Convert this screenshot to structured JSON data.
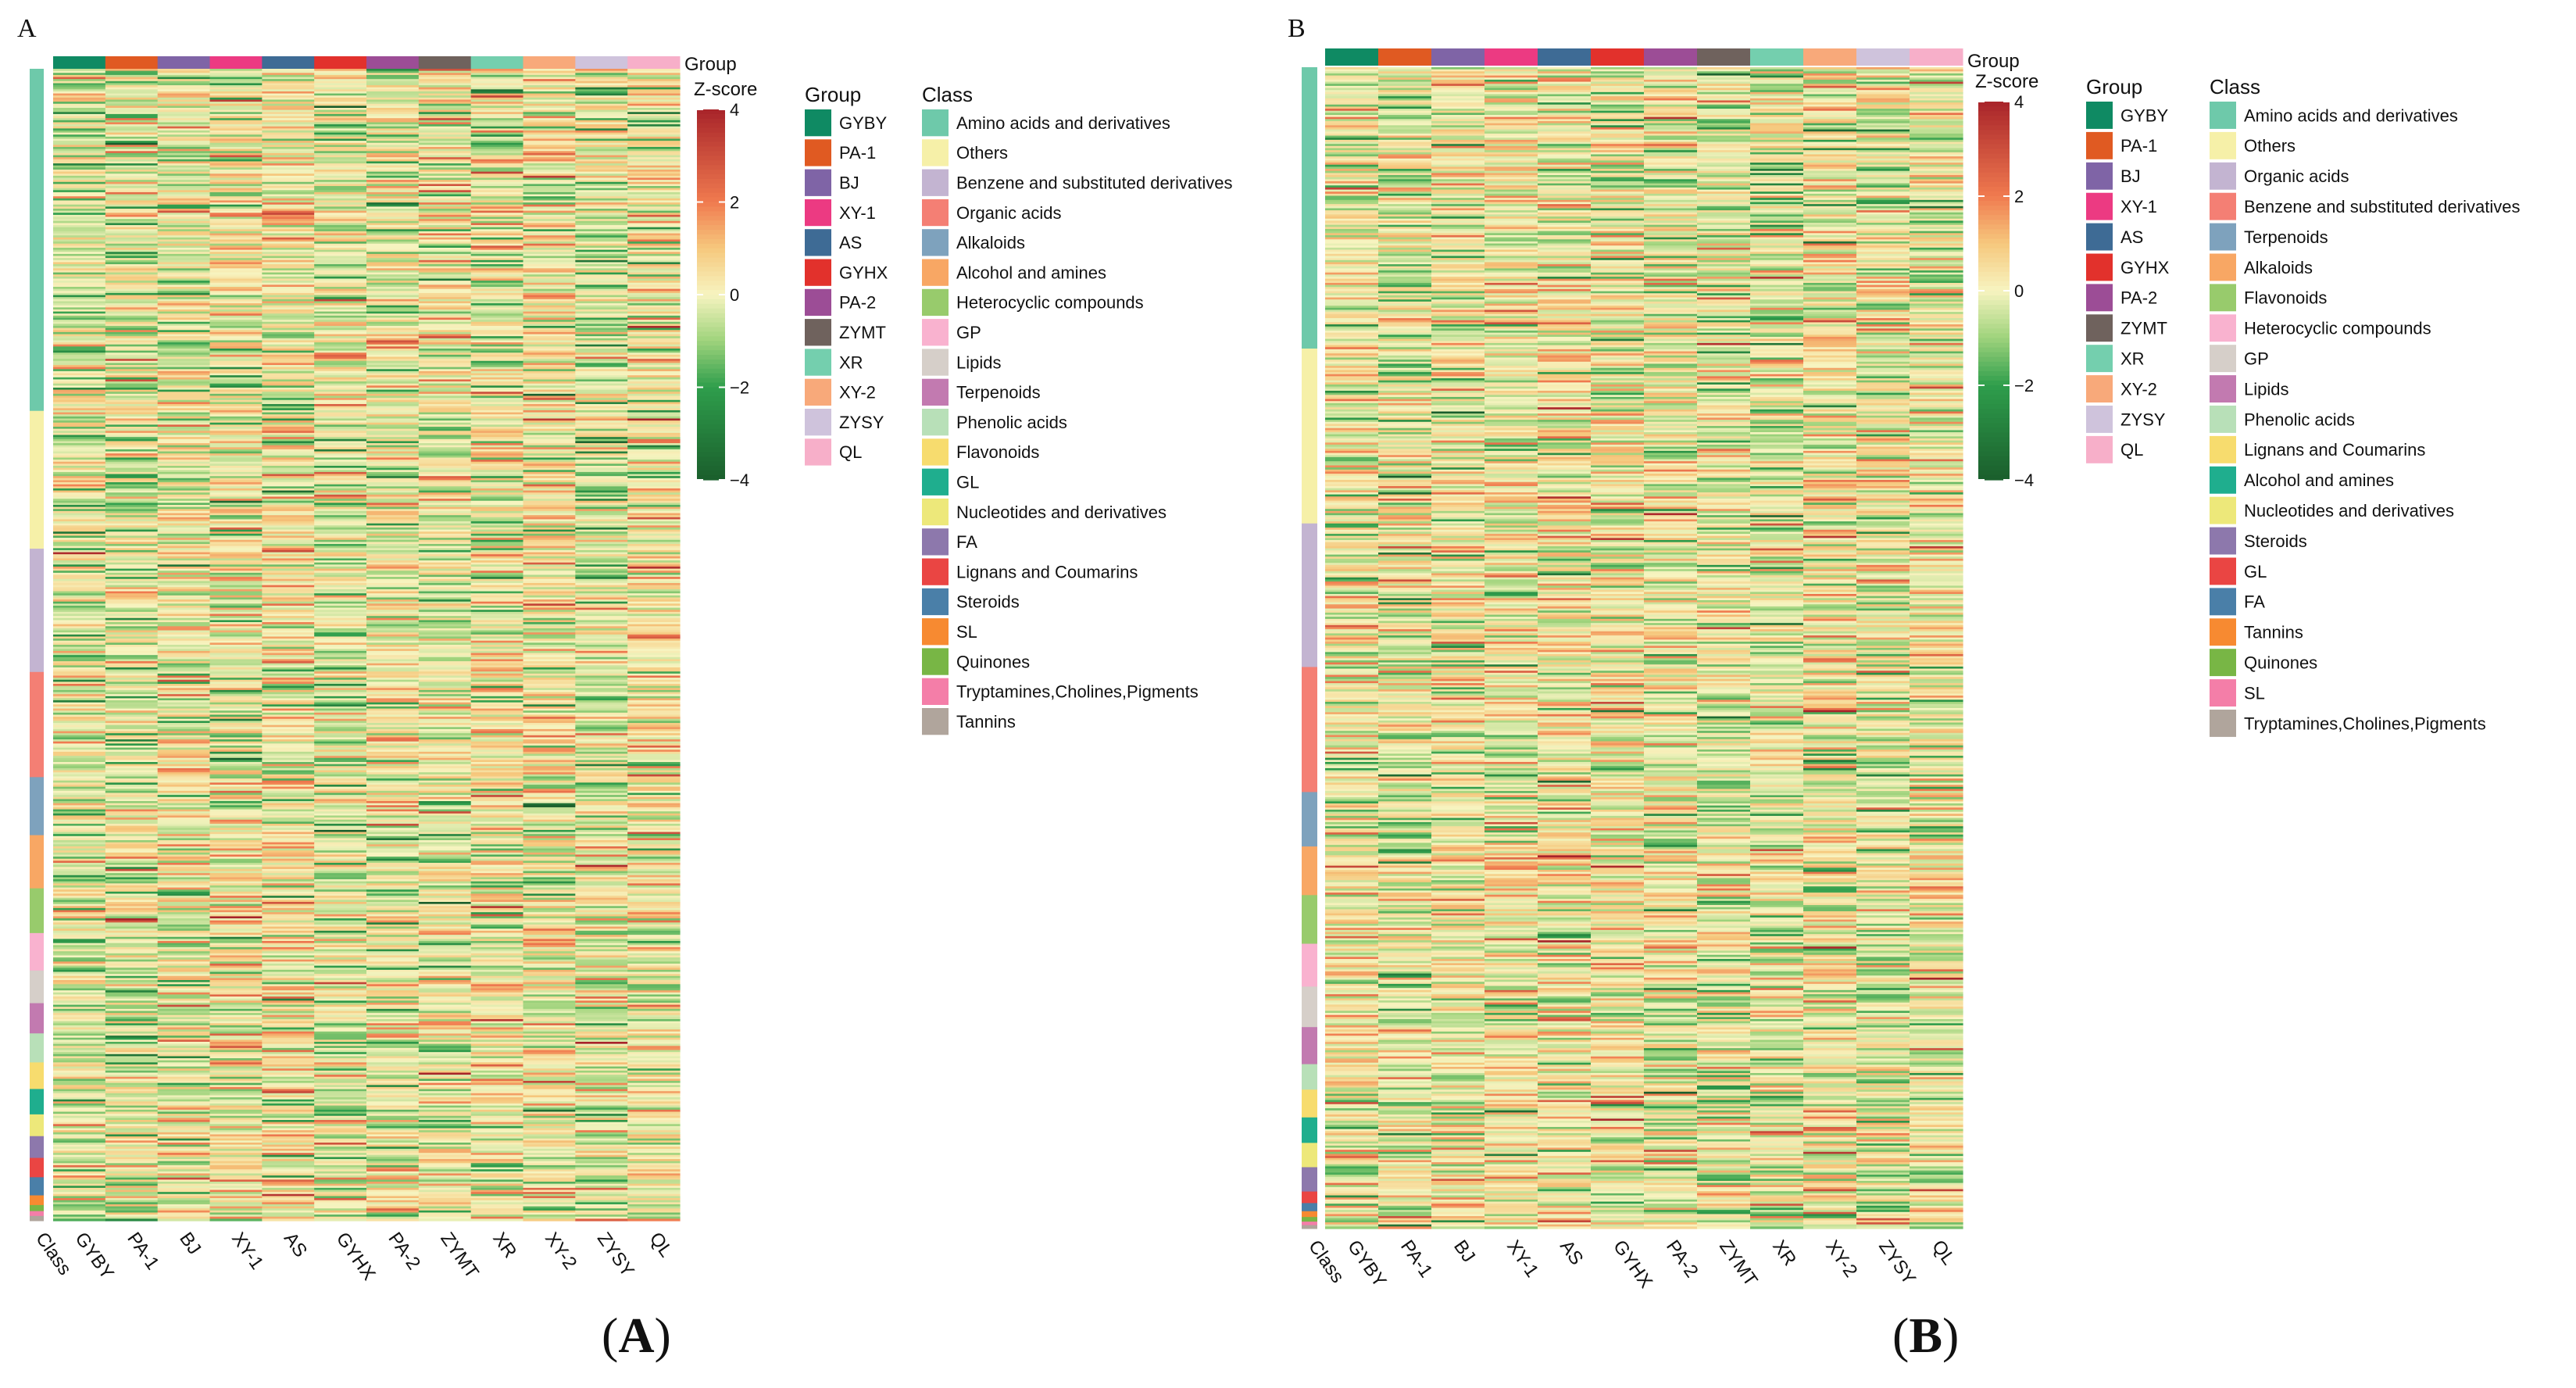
{
  "panels": [
    {
      "letter": "A",
      "caption_letter": "A",
      "group_annotation_label": "Group",
      "zscore_title": "Z-score",
      "zscore_ticks": [
        4,
        2,
        0,
        -2,
        -4
      ],
      "zscore_range": [
        -4,
        4
      ],
      "group_legend_title": "Group",
      "class_legend_title": "Class",
      "class_axis_label": "Class",
      "n_rows": 560,
      "groups": [
        {
          "name": "GYBY",
          "color": "#0f8a63"
        },
        {
          "name": "PA-1",
          "color": "#e05a22"
        },
        {
          "name": "BJ",
          "color": "#7f64a6"
        },
        {
          "name": "XY-1",
          "color": "#ec3a82"
        },
        {
          "name": "AS",
          "color": "#3e6b95"
        },
        {
          "name": "GYHX",
          "color": "#e2312c"
        },
        {
          "name": "PA-2",
          "color": "#9c4d96"
        },
        {
          "name": "ZYMT",
          "color": "#6f625d"
        },
        {
          "name": "XR",
          "color": "#74cfae"
        },
        {
          "name": "XY-2",
          "color": "#f8a97a"
        },
        {
          "name": "ZYSY",
          "color": "#cfc3dc"
        },
        {
          "name": "QL",
          "color": "#f7afc9"
        }
      ],
      "classes": [
        {
          "name": "Amino acids and derivatives",
          "color": "#6ec9aa",
          "share": 0.283
        },
        {
          "name": "Others",
          "color": "#f6f0a8",
          "share": 0.114
        },
        {
          "name": "Benzene and substituted derivatives",
          "color": "#c3b4d1",
          "share": 0.102
        },
        {
          "name": "Organic acids",
          "color": "#f47f74",
          "share": 0.087
        },
        {
          "name": "Alkaloids",
          "color": "#7ea2bd",
          "share": 0.048
        },
        {
          "name": "Alcohol and amines",
          "color": "#f8a764",
          "share": 0.044
        },
        {
          "name": "Heterocyclic compounds",
          "color": "#98cb6c",
          "share": 0.037
        },
        {
          "name": "GP",
          "color": "#f9b2cf",
          "share": 0.031
        },
        {
          "name": "Lipids",
          "color": "#d6cfc9",
          "share": 0.027
        },
        {
          "name": "Terpenoids",
          "color": "#c27ab0",
          "share": 0.025
        },
        {
          "name": "Phenolic acids",
          "color": "#b8e0b8",
          "share": 0.024
        },
        {
          "name": "Flavonoids",
          "color": "#f7dc6e",
          "share": 0.022
        },
        {
          "name": "GL",
          "color": "#1fae8e",
          "share": 0.021
        },
        {
          "name": "Nucleotides and derivatives",
          "color": "#ede87a",
          "share": 0.018
        },
        {
          "name": "FA",
          "color": "#8d78ac",
          "share": 0.018
        },
        {
          "name": "Lignans and Coumarins",
          "color": "#ea4543",
          "share": 0.016
        },
        {
          "name": "Steroids",
          "color": "#4a7fa8",
          "share": 0.015
        },
        {
          "name": "SL",
          "color": "#f78a31",
          "share": 0.008
        },
        {
          "name": "Quinones",
          "color": "#78b645",
          "share": 0.005
        },
        {
          "name": "Tryptamines,Cholines,Pigments",
          "color": "#f47ea8",
          "share": 0.004
        },
        {
          "name": "Tannins",
          "color": "#b0a59c",
          "share": 0.004
        }
      ]
    },
    {
      "letter": "B",
      "caption_letter": "B",
      "group_annotation_label": "Group",
      "zscore_title": "Z-score",
      "zscore_ticks": [
        4,
        2,
        0,
        -2,
        -4
      ],
      "zscore_range": [
        -4,
        4
      ],
      "group_legend_title": "Group",
      "class_legend_title": "Class",
      "class_axis_label": "Class",
      "n_rows": 560,
      "groups": [
        {
          "name": "GYBY",
          "color": "#0f8a63"
        },
        {
          "name": "PA-1",
          "color": "#e05a22"
        },
        {
          "name": "BJ",
          "color": "#7f64a6"
        },
        {
          "name": "XY-1",
          "color": "#ec3a82"
        },
        {
          "name": "AS",
          "color": "#3e6b95"
        },
        {
          "name": "GYHX",
          "color": "#e2312c"
        },
        {
          "name": "PA-2",
          "color": "#9c4d96"
        },
        {
          "name": "ZYMT",
          "color": "#6f625d"
        },
        {
          "name": "XR",
          "color": "#74cfae"
        },
        {
          "name": "XY-2",
          "color": "#f8a97a"
        },
        {
          "name": "ZYSY",
          "color": "#cfc3dc"
        },
        {
          "name": "QL",
          "color": "#f7afc9"
        }
      ],
      "classes": [
        {
          "name": "Amino acids and derivatives",
          "color": "#6ec9aa",
          "share": 0.243
        },
        {
          "name": "Others",
          "color": "#f6f0a8",
          "share": 0.151
        },
        {
          "name": "Organic acids",
          "color": "#c3b4d1",
          "share": 0.124
        },
        {
          "name": "Benzene and substituted derivatives",
          "color": "#f47f74",
          "share": 0.108
        },
        {
          "name": "Terpenoids",
          "color": "#7ea2bd",
          "share": 0.047
        },
        {
          "name": "Alkaloids",
          "color": "#f8a764",
          "share": 0.042
        },
        {
          "name": "Flavonoids",
          "color": "#98cb6c",
          "share": 0.042
        },
        {
          "name": "Heterocyclic compounds",
          "color": "#f9b2cf",
          "share": 0.037
        },
        {
          "name": "GP",
          "color": "#d6cfc9",
          "share": 0.035
        },
        {
          "name": "Lipids",
          "color": "#c27ab0",
          "share": 0.032
        },
        {
          "name": "Phenolic acids",
          "color": "#b8e0b8",
          "share": 0.022
        },
        {
          "name": "Lignans and Coumarins",
          "color": "#f7dc6e",
          "share": 0.024
        },
        {
          "name": "Alcohol and amines",
          "color": "#1fae8e",
          "share": 0.022
        },
        {
          "name": "Nucleotides and derivatives",
          "color": "#ede87a",
          "share": 0.021
        },
        {
          "name": "Steroids",
          "color": "#8d78ac",
          "share": 0.021
        },
        {
          "name": "GL",
          "color": "#ea4543",
          "share": 0.01
        },
        {
          "name": "FA",
          "color": "#4a7fa8",
          "share": 0.007
        },
        {
          "name": "Tannins",
          "color": "#f78a31",
          "share": 0.005
        },
        {
          "name": "Quinones",
          "color": "#78b645",
          "share": 0.004
        },
        {
          "name": "SL",
          "color": "#f47ea8",
          "share": 0.003
        },
        {
          "name": "Tryptamines,Cholines,Pigments",
          "color": "#b0a59c",
          "share": 0.003
        }
      ]
    }
  ],
  "chart_data": [
    {
      "type": "heatmap",
      "title": "A",
      "value_label": "Z-score",
      "value_range": [
        -4,
        4
      ],
      "columns": [
        "GYBY",
        "PA-1",
        "BJ",
        "XY-1",
        "AS",
        "GYHX",
        "PA-2",
        "ZYMT",
        "XR",
        "XY-2",
        "ZYSY",
        "QL"
      ],
      "row_annotation": "Class",
      "column_annotation": "Group",
      "colorscale": [
        [
          -4,
          "#1a5e2c"
        ],
        [
          -2,
          "#2f9e4c"
        ],
        [
          -1,
          "#9fd37c"
        ],
        [
          0,
          "#f7f4c0"
        ],
        [
          1,
          "#f6c87d"
        ],
        [
          2,
          "#f07a4f"
        ],
        [
          4,
          "#a8242a"
        ]
      ]
    },
    {
      "type": "heatmap",
      "title": "B",
      "value_label": "Z-score",
      "value_range": [
        -4,
        4
      ],
      "columns": [
        "GYBY",
        "PA-1",
        "BJ",
        "XY-1",
        "AS",
        "GYHX",
        "PA-2",
        "ZYMT",
        "XR",
        "XY-2",
        "ZYSY",
        "QL"
      ],
      "row_annotation": "Class",
      "column_annotation": "Group",
      "colorscale": [
        [
          -4,
          "#1a5e2c"
        ],
        [
          -2,
          "#2f9e4c"
        ],
        [
          -1,
          "#9fd37c"
        ],
        [
          0,
          "#f7f4c0"
        ],
        [
          1,
          "#f6c87d"
        ],
        [
          2,
          "#f07a4f"
        ],
        [
          4,
          "#a8242a"
        ]
      ]
    }
  ]
}
